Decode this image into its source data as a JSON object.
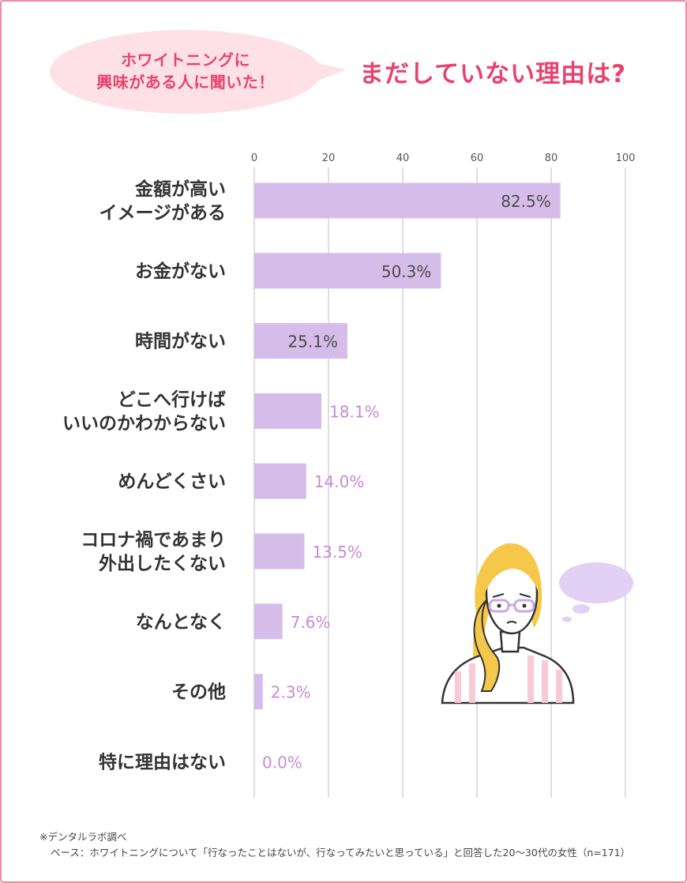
{
  "header": {
    "bubble_line1": "ホワイトニングに",
    "bubble_line2": "興味がある人に聞いた！",
    "title": "まだしていない理由は?"
  },
  "colors": {
    "bar": "#d6bde9",
    "accent": "#e8436f",
    "bubble": "#fde1e6",
    "value_outside": "#c98ad4",
    "grid": "#bdbdbd"
  },
  "chart_data": {
    "type": "bar",
    "orientation": "horizontal",
    "xlim": [
      0,
      100
    ],
    "x_ticks": [
      "0",
      "20",
      "40",
      "60",
      "80",
      "100"
    ],
    "grid": true,
    "categories": [
      [
        "金額が高い",
        "イメージがある"
      ],
      [
        "お金がない"
      ],
      [
        "時間がない"
      ],
      [
        "どこへ行けば",
        "いいのかわからない"
      ],
      [
        "めんどくさい"
      ],
      [
        "コロナ禍であまり",
        "外出したくない"
      ],
      [
        "なんとなく"
      ],
      [
        "その他"
      ],
      [
        "特に理由はない"
      ]
    ],
    "values": [
      82.5,
      50.3,
      25.1,
      18.1,
      14.0,
      13.5,
      7.6,
      2.3,
      0.0
    ],
    "value_labels": [
      "82.5%",
      "50.3%",
      "25.1%",
      "18.1%",
      "14.0%",
      "13.5%",
      "7.6%",
      "2.3%",
      "0.0%"
    ]
  },
  "footnote": {
    "line1": "※デンタルラボ調べ",
    "line2": "ベース：ホワイトニングについて「行なったことはないが、行なってみたいと思っている」と回答した20～30代の女性（n=171）"
  },
  "illustration": {
    "icon": "woman-thinking-illustration"
  }
}
